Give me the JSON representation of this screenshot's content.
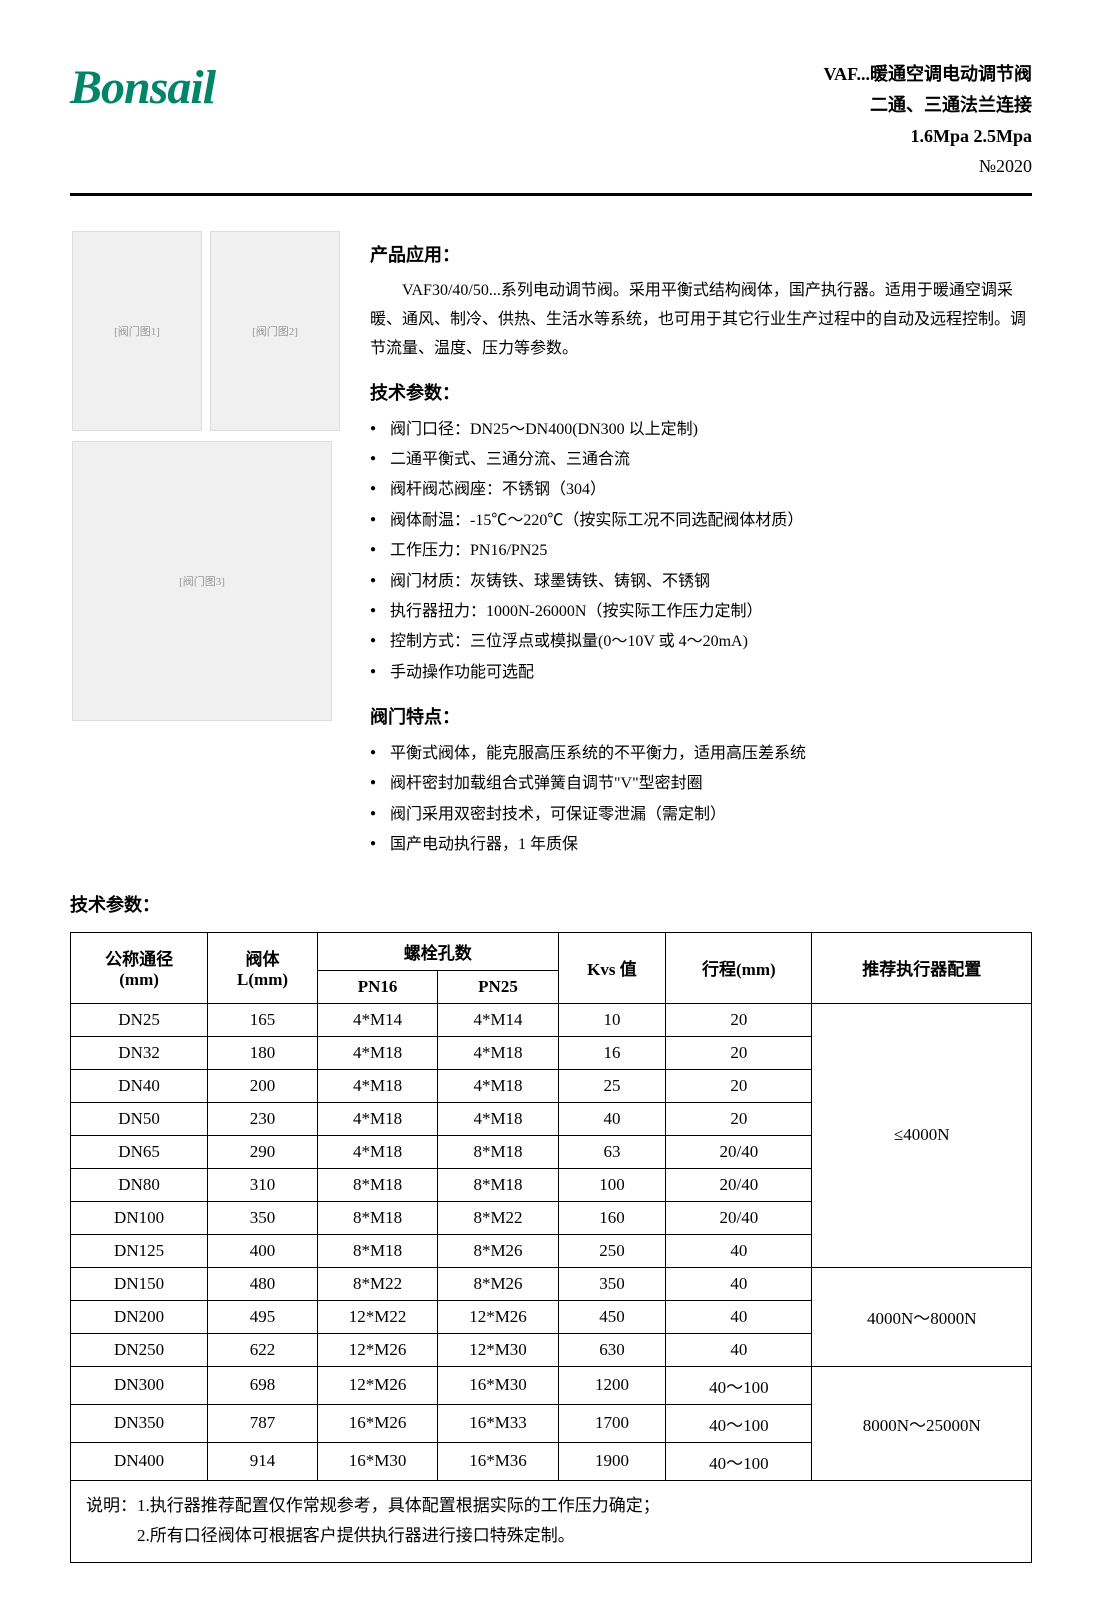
{
  "header": {
    "logo": "Bonsail",
    "title1": "VAF...暖通空调电动调节阀",
    "title2": "二通、三通法兰连接",
    "title3": "1.6Mpa   2.5Mpa",
    "num": "№2020"
  },
  "app": {
    "title": "产品应用：",
    "text": "VAF30/40/50...系列电动调节阀。采用平衡式结构阀体，国产执行器。适用于暖通空调采暖、通风、制冷、供热、生活水等系统，也可用于其它行业生产过程中的自动及远程控制。调节流量、温度、压力等参数。"
  },
  "tech": {
    "title": "技术参数：",
    "items": [
      "阀门口径：DN25～DN400(DN300 以上定制)",
      "二通平衡式、三通分流、三通合流",
      "阀杆阀芯阀座：不锈钢（304）",
      "阀体耐温：-15℃～220℃（按实际工况不同选配阀体材质）",
      "工作压力：PN16/PN25",
      "阀门材质：灰铸铁、球墨铸铁、铸钢、不锈钢",
      "执行器扭力：1000N-26000N（按实际工作压力定制）",
      "控制方式：三位浮点或模拟量(0～10V 或 4～20mA)",
      "手动操作功能可选配"
    ]
  },
  "features": {
    "title": "阀门特点：",
    "items": [
      "平衡式阀体，能克服高压系统的不平衡力，适用高压差系统",
      "阀杆密封加载组合式弹簧自调节\"V\"型密封圈",
      "阀门采用双密封技术，可保证零泄漏（需定制）",
      "国产电动执行器，1 年质保"
    ]
  },
  "tech_params_title": "技术参数：",
  "table": {
    "headers": {
      "dn": "公称通径",
      "dn_unit": "(mm)",
      "body": "阀体",
      "body_unit": "L(mm)",
      "bolt": "螺栓孔数",
      "pn16": "PN16",
      "pn25": "PN25",
      "kvs": "Kvs 值",
      "stroke": "行程(mm)",
      "actuator": "推荐执行器配置"
    },
    "rows": [
      {
        "dn": "DN25",
        "l": "165",
        "pn16": "4*M14",
        "pn25": "4*M14",
        "kvs": "10",
        "stroke": "20"
      },
      {
        "dn": "DN32",
        "l": "180",
        "pn16": "4*M18",
        "pn25": "4*M18",
        "kvs": "16",
        "stroke": "20"
      },
      {
        "dn": "DN40",
        "l": "200",
        "pn16": "4*M18",
        "pn25": "4*M18",
        "kvs": "25",
        "stroke": "20"
      },
      {
        "dn": "DN50",
        "l": "230",
        "pn16": "4*M18",
        "pn25": "4*M18",
        "kvs": "40",
        "stroke": "20"
      },
      {
        "dn": "DN65",
        "l": "290",
        "pn16": "4*M18",
        "pn25": "8*M18",
        "kvs": "63",
        "stroke": "20/40"
      },
      {
        "dn": "DN80",
        "l": "310",
        "pn16": "8*M18",
        "pn25": "8*M18",
        "kvs": "100",
        "stroke": "20/40"
      },
      {
        "dn": "DN100",
        "l": "350",
        "pn16": "8*M18",
        "pn25": "8*M22",
        "kvs": "160",
        "stroke": "20/40"
      },
      {
        "dn": "DN125",
        "l": "400",
        "pn16": "8*M18",
        "pn25": "8*M26",
        "kvs": "250",
        "stroke": "40"
      },
      {
        "dn": "DN150",
        "l": "480",
        "pn16": "8*M22",
        "pn25": "8*M26",
        "kvs": "350",
        "stroke": "40"
      },
      {
        "dn": "DN200",
        "l": "495",
        "pn16": "12*M22",
        "pn25": "12*M26",
        "kvs": "450",
        "stroke": "40"
      },
      {
        "dn": "DN250",
        "l": "622",
        "pn16": "12*M26",
        "pn25": "12*M30",
        "kvs": "630",
        "stroke": "40"
      },
      {
        "dn": "DN300",
        "l": "698",
        "pn16": "12*M26",
        "pn25": "16*M30",
        "kvs": "1200",
        "stroke": "40～100"
      },
      {
        "dn": "DN350",
        "l": "787",
        "pn16": "16*M26",
        "pn25": "16*M33",
        "kvs": "1700",
        "stroke": "40～100"
      },
      {
        "dn": "DN400",
        "l": "914",
        "pn16": "16*M30",
        "pn25": "16*M36",
        "kvs": "1900",
        "stroke": "40～100"
      }
    ],
    "actuator_groups": [
      {
        "span": 8,
        "text": "≤4000N"
      },
      {
        "span": 3,
        "text": "4000N～8000N"
      },
      {
        "span": 3,
        "text": "8000N～25000N"
      }
    ]
  },
  "note": {
    "line1": "说明：1.执行器推荐配置仅作常规参考，具体配置根据实际的工作压力确定；",
    "line2": "2.所有口径阀体可根据客户提供执行器进行接口特殊定制。"
  },
  "img_labels": {
    "valve1": "[阀门图1]",
    "valve2": "[阀门图2]",
    "valve3": "[阀门图3]"
  }
}
